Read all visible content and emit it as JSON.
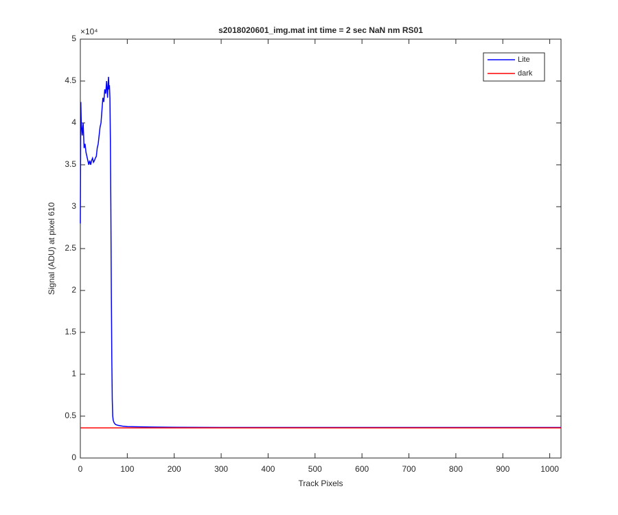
{
  "chart_data": {
    "type": "line",
    "title": "s2018020601_img.mat int time = 2 sec  NaN nm RS01",
    "x_label": "Track Pixels",
    "y_label": "Signal (ADU) at pixel 610",
    "y_scale_label": "×10⁴",
    "xlim": [
      0,
      1024
    ],
    "ylim": [
      0,
      5
    ],
    "xticks": [
      0,
      100,
      200,
      300,
      400,
      500,
      600,
      700,
      800,
      900,
      1000
    ],
    "yticks": [
      0,
      0.5,
      1,
      1.5,
      2,
      2.5,
      3,
      3.5,
      4,
      4.5,
      5
    ],
    "legend_position": "top-right",
    "series": [
      {
        "name": "Lite",
        "color": "#0000ff",
        "x": [
          0,
          1,
          2,
          4,
          6,
          8,
          10,
          12,
          14,
          16,
          18,
          20,
          22,
          24,
          26,
          28,
          30,
          32,
          34,
          36,
          38,
          40,
          42,
          44,
          46,
          48,
          50,
          52,
          54,
          56,
          58,
          60,
          61,
          62,
          63,
          64,
          65,
          66,
          67,
          68,
          69,
          70,
          72,
          75,
          80,
          90,
          100,
          150,
          200,
          300,
          400,
          500,
          600,
          700,
          800,
          900,
          1000,
          1024
        ],
        "values": [
          2.8,
          4.25,
          4.0,
          3.85,
          4.0,
          3.7,
          3.75,
          3.65,
          3.6,
          3.55,
          3.5,
          3.55,
          3.5,
          3.55,
          3.58,
          3.53,
          3.55,
          3.58,
          3.6,
          3.7,
          3.75,
          3.85,
          3.95,
          4.0,
          4.15,
          4.3,
          4.25,
          4.4,
          4.35,
          4.5,
          4.3,
          4.55,
          4.4,
          4.45,
          4.3,
          3.8,
          3.0,
          2.0,
          1.2,
          0.7,
          0.5,
          0.45,
          0.42,
          0.4,
          0.39,
          0.38,
          0.375,
          0.37,
          0.367,
          0.365,
          0.365,
          0.365,
          0.365,
          0.365,
          0.365,
          0.365,
          0.365,
          0.365
        ]
      },
      {
        "name": "dark",
        "color": "#ff0000",
        "x": [
          0,
          1024
        ],
        "values": [
          0.36,
          0.36
        ]
      }
    ]
  }
}
